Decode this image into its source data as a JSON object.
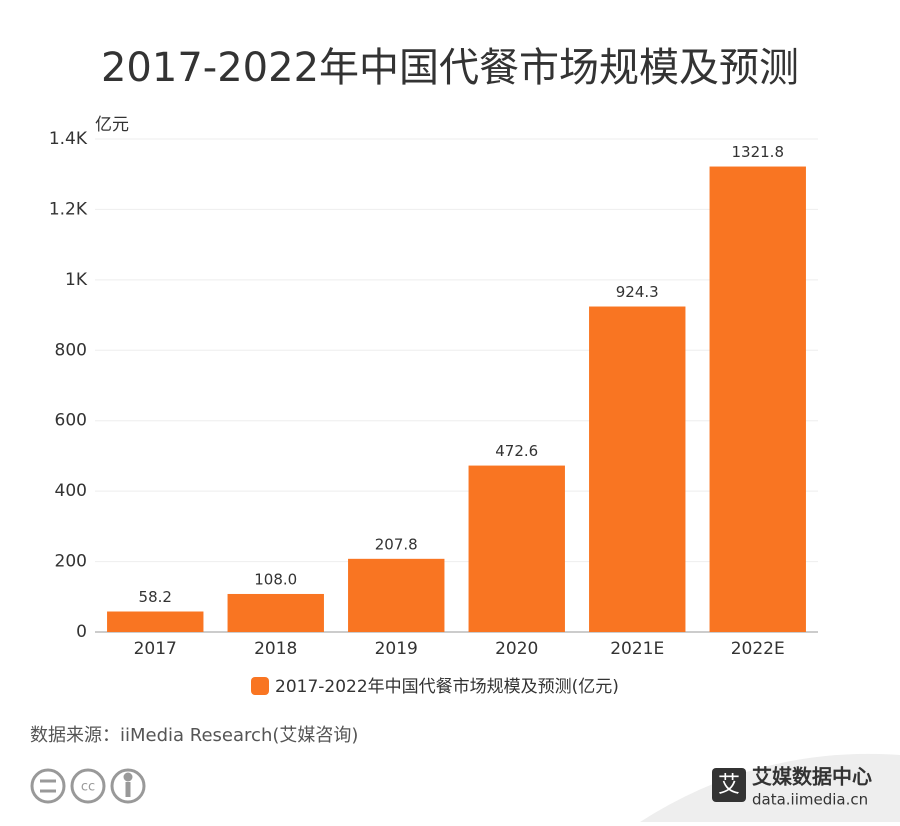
{
  "chart_data": {
    "type": "bar",
    "title": "2017-2022年中国代餐市场规模及预测",
    "y_label": "亿元",
    "categories": [
      "2017",
      "2018",
      "2019",
      "2020",
      "2021E",
      "2022E"
    ],
    "series": [
      {
        "name": "2017-2022年中国代餐市场规模及预测(亿元)",
        "color": "#f97522",
        "values": [
          58.2,
          108.0,
          207.8,
          472.6,
          924.3,
          1321.8
        ],
        "value_labels": [
          "58.2",
          "108.0",
          "207.8",
          "472.6",
          "924.3",
          "1321.8"
        ]
      }
    ],
    "ylim": [
      0,
      1400
    ],
    "yticks": [
      0,
      200,
      400,
      600,
      800,
      {
        "value": 1000,
        "label": "1K"
      },
      {
        "value": 1200,
        "label": "1.2K"
      },
      {
        "value": 1400,
        "label": "1.4K"
      }
    ],
    "grid": true
  },
  "footer": {
    "source": "数据来源：iiMedia Research(艾媒咨询)",
    "brand": "艾媒数据中心",
    "url": "data.iimedia.cn"
  }
}
